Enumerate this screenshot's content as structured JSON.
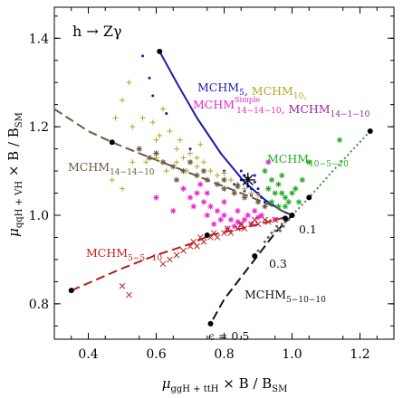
{
  "chart_data": {
    "type": "scatter",
    "title": "h → Zγ",
    "xlabel_main": "μ",
    "xlabel_sub": "ggH + ttH",
    "xlabel_tail": " × B / B",
    "xlabel_tail_sub": "SM",
    "ylabel_main": "μ",
    "ylabel_sub": "qqH + VH",
    "ylabel_tail": " × B / B",
    "ylabel_tail_sub": "SM",
    "xlim": [
      0.3,
      1.3
    ],
    "ylim": [
      0.72,
      1.47
    ],
    "xticks": [
      0.4,
      0.6,
      0.8,
      1.0,
      1.2
    ],
    "xtick_labels": [
      "0.4",
      "0.6",
      "0.8",
      "1.0",
      "1.2"
    ],
    "yticks": [
      0.8,
      1.0,
      1.2,
      1.4
    ],
    "ytick_labels": [
      "0.8",
      "1.0",
      "1.2",
      "1.4"
    ],
    "curves": [
      {
        "color": "#1a1aaa",
        "style": "solid",
        "points": [
          [
            0.61,
            1.37
          ],
          [
            0.66,
            1.3
          ],
          [
            0.72,
            1.22
          ],
          [
            0.79,
            1.14
          ],
          [
            0.86,
            1.075
          ],
          [
            0.92,
            1.035
          ],
          [
            0.97,
            1.01
          ],
          [
            1.0,
            1.0
          ]
        ],
        "markers": [
          [
            0.61,
            1.37
          ]
        ]
      },
      {
        "color": "#2aa02a",
        "style": "dotted",
        "points": [
          [
            1.0,
            1.0
          ],
          [
            1.05,
            1.04
          ],
          [
            1.12,
            1.1
          ],
          [
            1.23,
            1.19
          ]
        ],
        "markers": [
          [
            1.05,
            1.04
          ],
          [
            1.23,
            1.19
          ]
        ]
      },
      {
        "color": "#6b5a40",
        "style": "dashed",
        "points": [
          [
            0.3,
            1.24
          ],
          [
            0.4,
            1.19
          ],
          [
            0.47,
            1.165
          ],
          [
            0.55,
            1.14
          ],
          [
            0.65,
            1.11
          ],
          [
            0.75,
            1.08
          ],
          [
            0.85,
            1.05
          ],
          [
            0.93,
            1.025
          ],
          [
            1.0,
            1.0
          ]
        ],
        "markers": [
          [
            0.47,
            1.165
          ]
        ]
      },
      {
        "color": "#b22020",
        "style": "dashed",
        "points": [
          [
            0.35,
            0.83
          ],
          [
            0.5,
            0.88
          ],
          [
            0.6,
            0.91
          ],
          [
            0.7,
            0.935
          ],
          [
            0.76,
            0.955
          ],
          [
            0.85,
            0.97
          ],
          [
            0.93,
            0.985
          ],
          [
            1.0,
            1.0
          ]
        ],
        "markers": [
          [
            0.35,
            0.83
          ],
          [
            0.75,
            0.955
          ]
        ]
      },
      {
        "color": "#111111",
        "style": "dashed",
        "points": [
          [
            1.0,
            1.0
          ],
          [
            0.95,
            0.96
          ],
          [
            0.9,
            0.91
          ],
          [
            0.85,
            0.86
          ],
          [
            0.8,
            0.81
          ],
          [
            0.76,
            0.755
          ]
        ],
        "markers": [
          [
            0.76,
            0.755
          ],
          [
            0.89,
            0.908
          ],
          [
            0.98,
            0.993
          ],
          [
            1.0,
            1.0
          ]
        ]
      }
    ],
    "scatter_groups": [
      {
        "color": "#1a1aaa",
        "marker": "dot",
        "points": [
          [
            0.56,
            1.36
          ],
          [
            0.58,
            1.31
          ],
          [
            0.59,
            1.27
          ],
          [
            0.63,
            1.23
          ],
          [
            0.7,
            1.15
          ],
          [
            0.8,
            1.1
          ],
          [
            0.83,
            1.07
          ],
          [
            0.86,
            1.09
          ],
          [
            0.88,
            1.06
          ],
          [
            0.9,
            1.05
          ],
          [
            0.85,
            1.08
          ],
          [
            0.87,
            1.065
          ],
          [
            0.89,
            1.075
          ],
          [
            0.91,
            1.04
          ],
          [
            0.88,
            1.045
          ],
          [
            0.86,
            1.055
          ],
          [
            0.84,
            1.07
          ],
          [
            0.92,
            1.03
          ],
          [
            0.87,
            1.085
          ],
          [
            0.9,
            1.06
          ],
          [
            0.85,
            1.1
          ],
          [
            0.89,
            1.09
          ]
        ]
      },
      {
        "color": "#b5a62a",
        "marker": "plus",
        "points": [
          [
            0.52,
            1.3
          ],
          [
            0.48,
            1.22
          ],
          [
            0.5,
            1.26
          ],
          [
            0.53,
            1.2
          ],
          [
            0.56,
            1.22
          ],
          [
            0.59,
            1.21
          ],
          [
            0.6,
            1.17
          ],
          [
            0.62,
            1.24
          ],
          [
            0.64,
            1.19
          ],
          [
            0.66,
            1.15
          ],
          [
            0.68,
            1.13
          ],
          [
            0.7,
            1.14
          ],
          [
            0.72,
            1.11
          ],
          [
            0.74,
            1.12
          ],
          [
            0.76,
            1.1
          ],
          [
            0.78,
            1.09
          ],
          [
            0.8,
            1.095
          ],
          [
            0.82,
            1.08
          ],
          [
            0.84,
            1.07
          ],
          [
            0.86,
            1.06
          ],
          [
            0.88,
            1.05
          ],
          [
            0.9,
            1.045
          ],
          [
            0.57,
            1.12
          ],
          [
            0.6,
            1.13
          ],
          [
            0.63,
            1.1
          ],
          [
            0.66,
            1.12
          ],
          [
            0.69,
            1.1
          ],
          [
            0.72,
            1.13
          ],
          [
            0.47,
            1.08
          ],
          [
            0.5,
            1.06
          ],
          [
            0.53,
            1.12
          ],
          [
            0.61,
            1.18
          ],
          [
            0.67,
            1.17
          ],
          [
            0.73,
            1.16
          ],
          [
            0.55,
            1.15
          ]
        ]
      },
      {
        "color": "#6b5a40",
        "marker": "star",
        "points": [
          [
            0.55,
            1.15
          ],
          [
            0.58,
            1.13
          ],
          [
            0.6,
            1.14
          ],
          [
            0.62,
            1.12
          ],
          [
            0.65,
            1.11
          ],
          [
            0.68,
            1.1
          ],
          [
            0.7,
            1.12
          ],
          [
            0.72,
            1.09
          ],
          [
            0.75,
            1.08
          ],
          [
            0.78,
            1.07
          ],
          [
            0.8,
            1.06
          ],
          [
            0.83,
            1.05
          ],
          [
            0.86,
            1.04
          ],
          [
            0.9,
            1.03
          ],
          [
            0.92,
            1.02
          ],
          [
            0.66,
            1.08
          ],
          [
            0.74,
            1.1
          ],
          [
            0.8,
            1.08
          ],
          [
            0.84,
            1.065
          ]
        ]
      },
      {
        "color": "#ee22cc",
        "marker": "star",
        "points": [
          [
            0.68,
            1.06
          ],
          [
            0.7,
            1.04
          ],
          [
            0.72,
            1.05
          ],
          [
            0.74,
            1.03
          ],
          [
            0.76,
            1.02
          ],
          [
            0.78,
            1.01
          ],
          [
            0.8,
            1.0
          ],
          [
            0.82,
            0.99
          ],
          [
            0.84,
            0.985
          ],
          [
            0.86,
            0.99
          ],
          [
            0.88,
            0.98
          ],
          [
            0.9,
            0.995
          ],
          [
            0.75,
            1.0
          ],
          [
            0.77,
            0.98
          ],
          [
            0.79,
            0.99
          ],
          [
            0.81,
            0.97
          ],
          [
            0.83,
            0.975
          ],
          [
            0.85,
            0.98
          ],
          [
            0.87,
            1.0
          ],
          [
            0.73,
            1.07
          ],
          [
            0.71,
            1.02
          ],
          [
            0.75,
            1.05
          ],
          [
            0.8,
            1.03
          ],
          [
            0.84,
            1.01
          ],
          [
            0.89,
            1.01
          ],
          [
            0.91,
            1.0
          ],
          [
            0.6,
            1.04
          ],
          [
            0.65,
            1.01
          ],
          [
            0.93,
            1.12
          ],
          [
            0.95,
            0.99
          ]
        ]
      },
      {
        "color": "#22aa22",
        "marker": "star",
        "points": [
          [
            0.92,
            1.1
          ],
          [
            0.94,
            1.08
          ],
          [
            0.96,
            1.07
          ],
          [
            0.97,
            1.05
          ],
          [
            0.98,
            1.04
          ],
          [
            0.99,
            1.03
          ],
          [
            0.95,
            1.05
          ],
          [
            0.93,
            1.06
          ],
          [
            0.97,
            1.09
          ],
          [
            1.0,
            1.05
          ],
          [
            1.01,
            1.06
          ],
          [
            1.03,
            1.08
          ],
          [
            1.05,
            1.12
          ],
          [
            0.98,
            1.02
          ],
          [
            0.96,
            1.02
          ],
          [
            0.94,
            1.03
          ],
          [
            1.14,
            1.17
          ],
          [
            1.02,
            1.03
          ]
        ]
      },
      {
        "color": "#bb2222",
        "marker": "cross",
        "points": [
          [
            0.5,
            0.84
          ],
          [
            0.52,
            0.82
          ],
          [
            0.62,
            0.89
          ],
          [
            0.64,
            0.9
          ],
          [
            0.66,
            0.91
          ],
          [
            0.68,
            0.92
          ],
          [
            0.7,
            0.93
          ],
          [
            0.72,
            0.93
          ],
          [
            0.74,
            0.94
          ],
          [
            0.76,
            0.95
          ],
          [
            0.78,
            0.95
          ],
          [
            0.8,
            0.96
          ],
          [
            0.82,
            0.96
          ],
          [
            0.84,
            0.97
          ],
          [
            0.86,
            0.97
          ],
          [
            0.88,
            0.98
          ],
          [
            0.9,
            0.98
          ],
          [
            0.92,
            0.99
          ],
          [
            0.71,
            0.94
          ],
          [
            0.73,
            0.95
          ],
          [
            0.77,
            0.96
          ],
          [
            0.81,
            0.97
          ],
          [
            0.85,
            0.98
          ],
          [
            0.89,
            0.99
          ],
          [
            0.93,
            0.985
          ],
          [
            0.95,
            0.99
          ]
        ]
      },
      {
        "color": "#666666",
        "marker": "dot",
        "points": [
          [
            0.9,
            0.92
          ],
          [
            0.92,
            0.94
          ],
          [
            0.94,
            0.96
          ],
          [
            0.95,
            0.965
          ],
          [
            0.96,
            0.97
          ],
          [
            0.97,
            0.98
          ],
          [
            0.98,
            0.985
          ],
          [
            0.99,
            0.99
          ],
          [
            0.93,
            0.95
          ],
          [
            0.955,
            0.975
          ],
          [
            0.965,
            0.965
          ],
          [
            0.975,
            0.975
          ]
        ]
      },
      {
        "color": "#000000",
        "marker": "bigstar",
        "points": [
          [
            0.87,
            1.08
          ]
        ]
      }
    ],
    "annotations": [
      {
        "id": "a_mchm5",
        "segments": [
          {
            "text": "MCHM",
            "color": "#1a1aaa"
          },
          {
            "text": "5",
            "color": "#1a1aaa",
            "sub": true
          },
          {
            "text": ", ",
            "color": "#1a1aaa"
          },
          {
            "text": "MCHM",
            "color": "#b5a62a"
          },
          {
            "text": "10",
            "color": "#b5a62a",
            "sub": true
          },
          {
            "text": ",",
            "color": "#b5a62a"
          }
        ]
      },
      {
        "id": "a_mchm14",
        "segments": [
          {
            "text": "MCHM",
            "color": "#ee22cc"
          },
          {
            "text": "14−14−10",
            "color": "#ee22cc",
            "sub": true,
            "sup": "Simple"
          },
          {
            "text": ",  ",
            "color": "#ee22cc"
          },
          {
            "text": "MCHM",
            "color": "#9a2a9a"
          },
          {
            "text": "14−1−10",
            "color": "#9a2a9a",
            "sub": true
          }
        ]
      },
      {
        "id": "a_mchm1451",
        "segments": [
          {
            "text": "MCHM",
            "color": "#6b5a40"
          },
          {
            "text": "14−14−10",
            "color": "#6b5a40",
            "sub": true
          }
        ]
      },
      {
        "id": "a_mchm10510",
        "segments": [
          {
            "text": "MCHM",
            "color": "#22aa22"
          },
          {
            "text": "10−5−10",
            "color": "#22aa22",
            "sub": true
          }
        ]
      },
      {
        "id": "a_mchm5510",
        "segments": [
          {
            "text": "MCHM",
            "color": "#bb2222"
          },
          {
            "text": "5−5−10",
            "color": "#bb2222",
            "sub": true
          }
        ]
      },
      {
        "id": "a_mchm51010",
        "segments": [
          {
            "text": "MCHM",
            "color": "#111111"
          },
          {
            "text": "5−10−10",
            "color": "#111111",
            "sub": true
          }
        ]
      },
      {
        "id": "a_eps01",
        "segments": [
          {
            "text": "0.1",
            "color": "#111111"
          }
        ]
      },
      {
        "id": "a_eps03",
        "segments": [
          {
            "text": "0.3",
            "color": "#111111"
          }
        ]
      },
      {
        "id": "a_eps05",
        "segments": [
          {
            "text": "ϵ = 0.5",
            "color": "#111111"
          }
        ]
      }
    ]
  }
}
